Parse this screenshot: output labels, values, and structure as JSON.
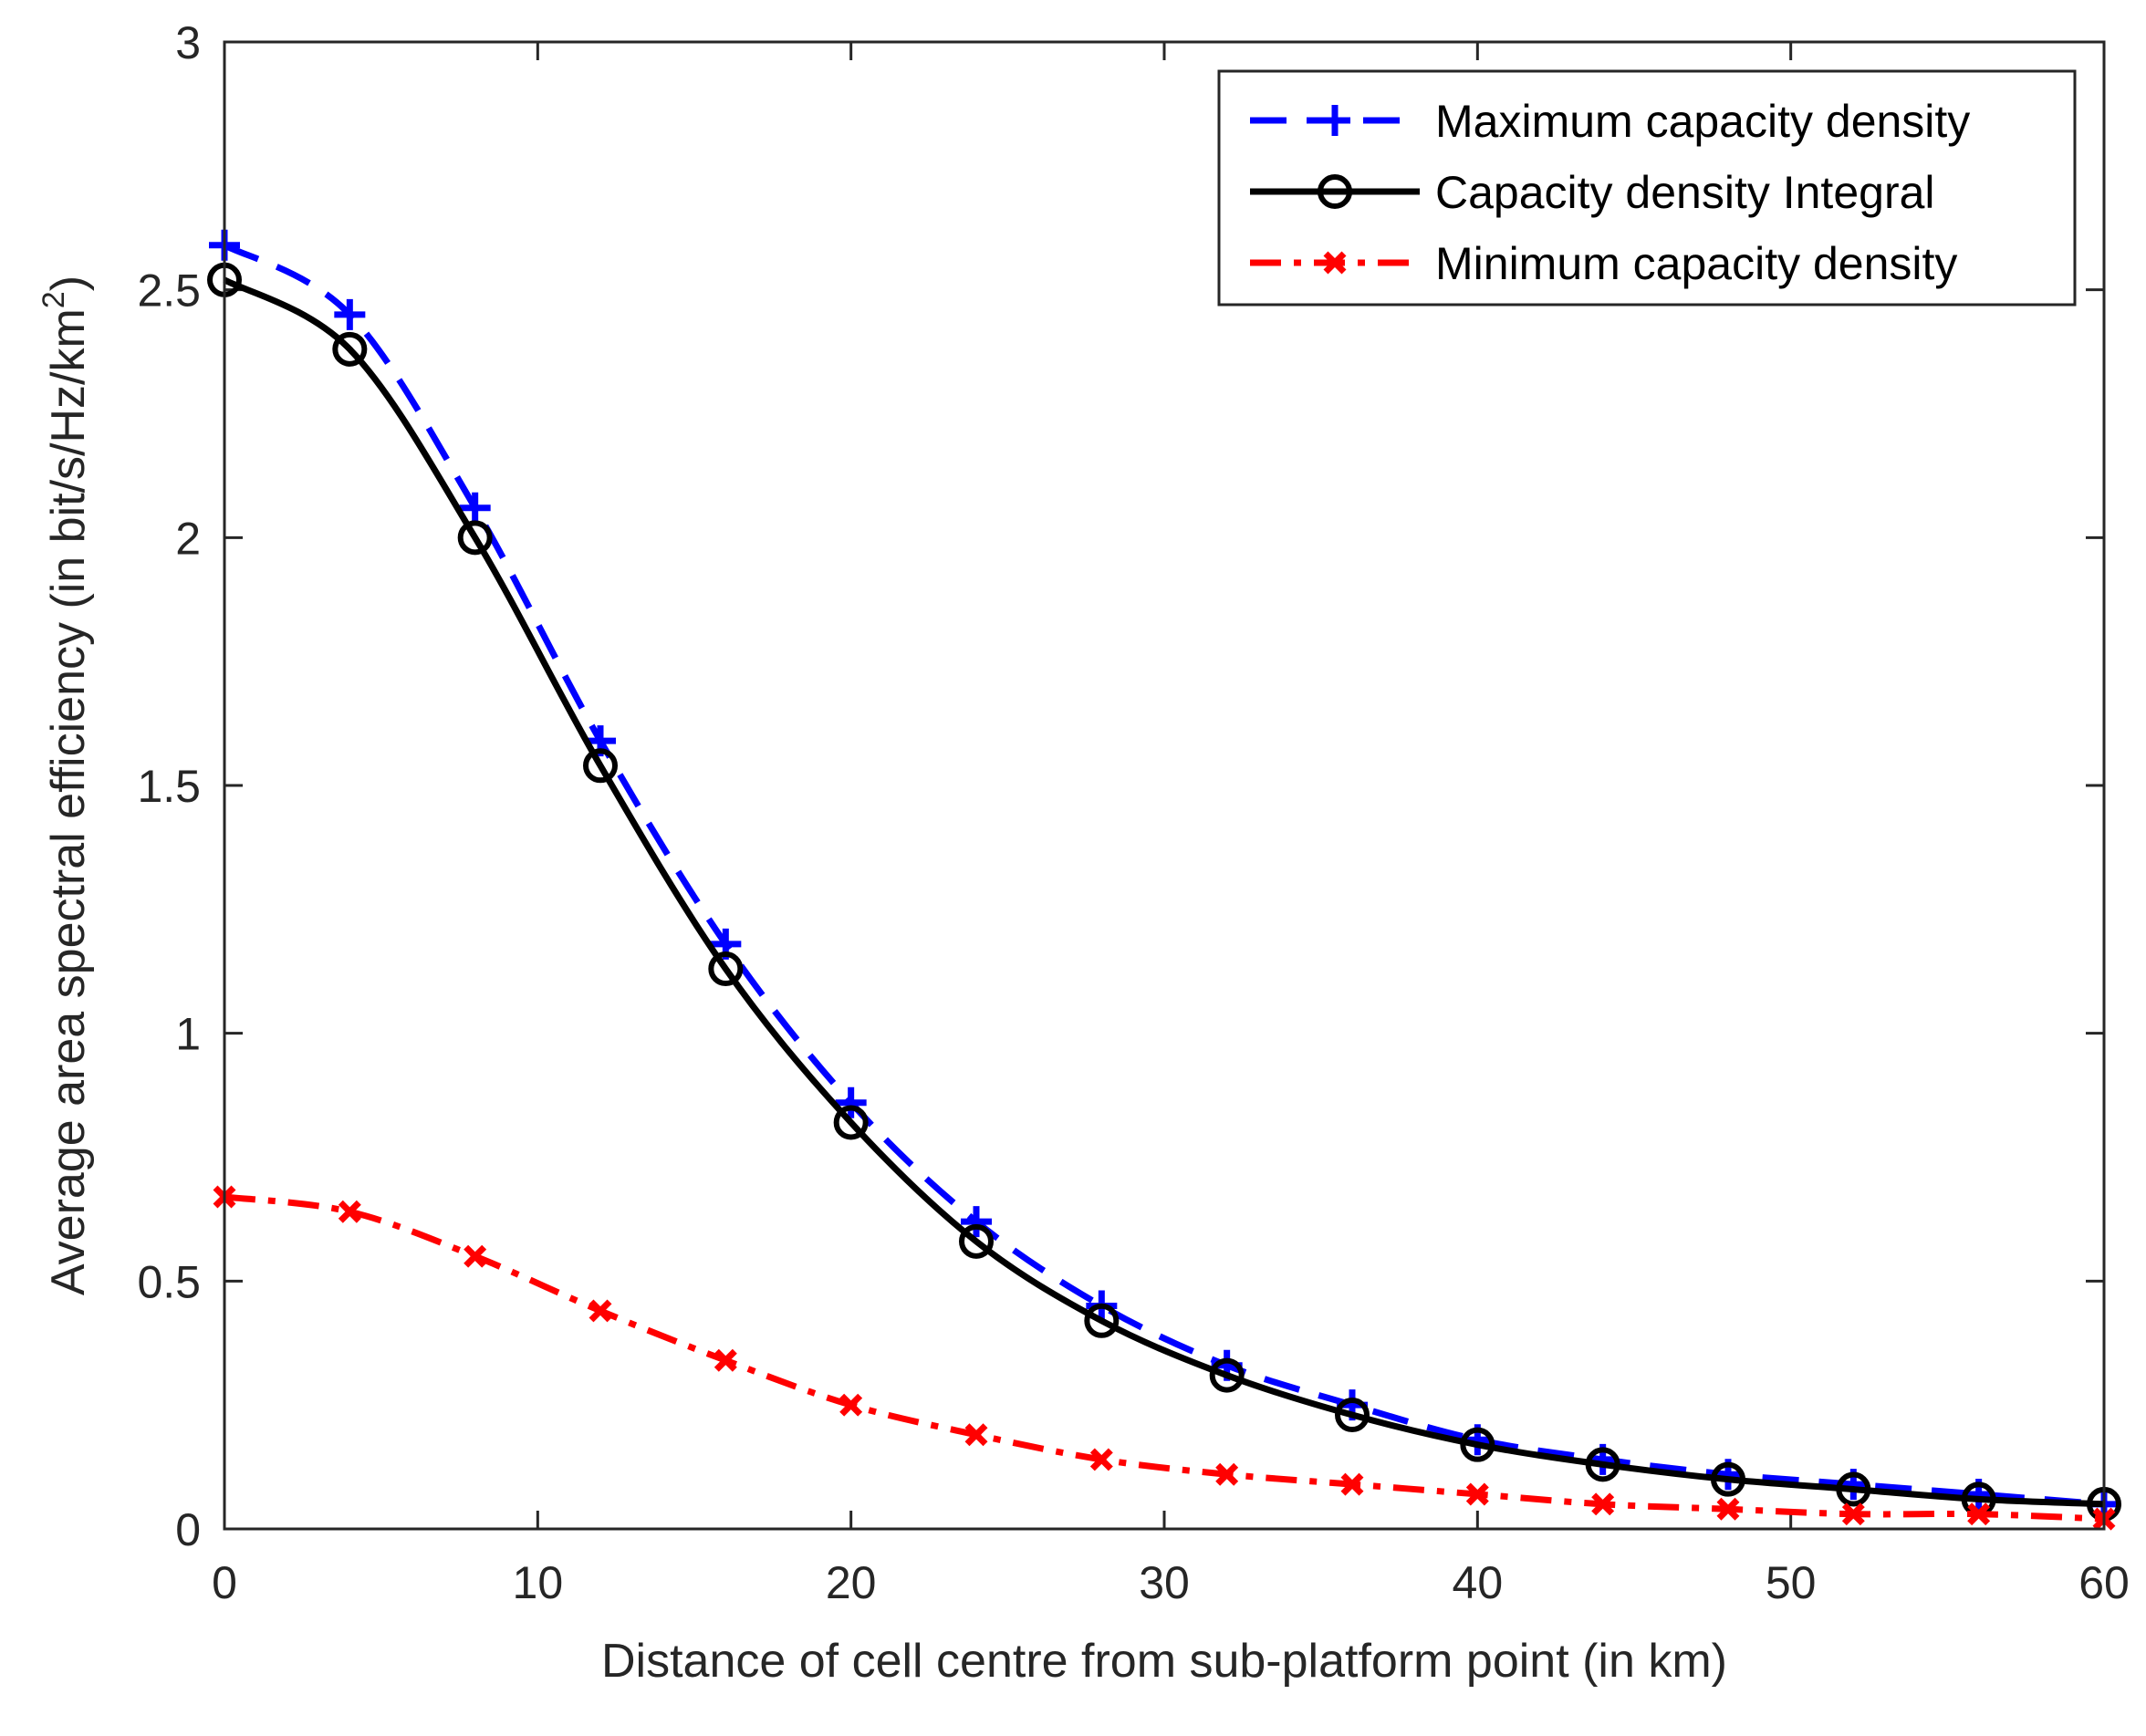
{
  "chart_data": {
    "type": "line",
    "xlabel": "Distance of cell centre from sub-platform point (in km)",
    "ylabel": {
      "text": "Average area spectral efficiency (in bit/s/Hz/km",
      "superscript": "2",
      "suffix": ")"
    },
    "xlim": [
      0,
      60
    ],
    "ylim": [
      0,
      3
    ],
    "x_ticks": [
      0,
      10,
      20,
      30,
      40,
      50,
      60
    ],
    "x_tick_labels": [
      "0",
      "10",
      "20",
      "30",
      "40",
      "50",
      "60"
    ],
    "y_ticks": [
      0,
      0.5,
      1,
      1.5,
      2,
      2.5,
      3
    ],
    "y_tick_labels": [
      "0",
      "0.5",
      "1",
      "1.5",
      "2",
      "2.5",
      "3"
    ],
    "grid": false,
    "legend_position": "top-right",
    "x": [
      0,
      4,
      8,
      12,
      16,
      20,
      24,
      28,
      32,
      36,
      40,
      44,
      48,
      52,
      56,
      60
    ],
    "series": [
      {
        "name": "Maximum capacity density",
        "color": "#0000ff",
        "line_style": "dashed",
        "marker": "plus",
        "values": [
          2.59,
          2.45,
          2.06,
          1.59,
          1.18,
          0.86,
          0.62,
          0.45,
          0.33,
          0.25,
          0.18,
          0.14,
          0.11,
          0.09,
          0.07,
          0.05
        ]
      },
      {
        "name": "Capacity density Integral",
        "color": "#000000",
        "line_style": "solid",
        "marker": "circle",
        "values": [
          2.52,
          2.38,
          2.0,
          1.54,
          1.13,
          0.82,
          0.58,
          0.42,
          0.31,
          0.23,
          0.17,
          0.13,
          0.1,
          0.08,
          0.06,
          0.05
        ]
      },
      {
        "name": "Minimum capacity density",
        "color": "#ff0000",
        "line_style": "dash-dot",
        "marker": "x",
        "values": [
          0.67,
          0.64,
          0.55,
          0.44,
          0.34,
          0.25,
          0.19,
          0.14,
          0.11,
          0.09,
          0.07,
          0.05,
          0.04,
          0.03,
          0.03,
          0.02
        ]
      }
    ]
  }
}
